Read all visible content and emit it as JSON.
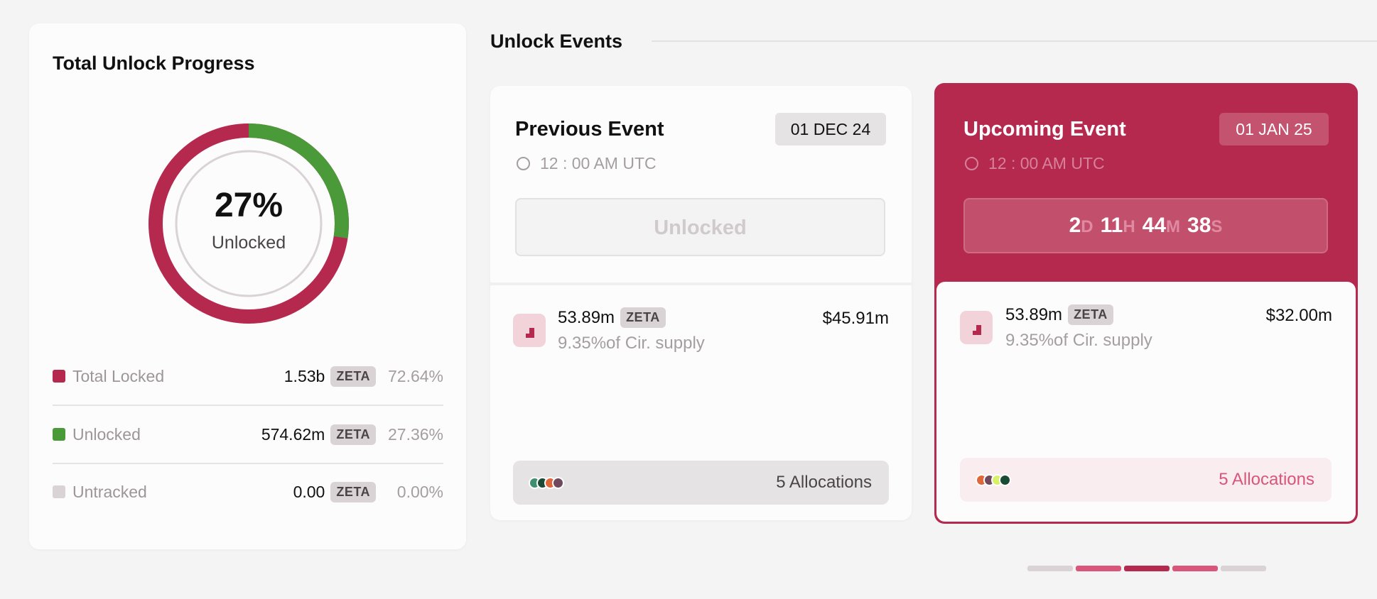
{
  "progress": {
    "title": "Total Unlock Progress",
    "percent_label": "27%",
    "center_label": "Unlocked",
    "unlocked_fraction": 0.2736,
    "colors": {
      "locked": "#b5294f",
      "unlocked": "#4a9a3a",
      "untracked": "#d9d3d5"
    },
    "legend": [
      {
        "label": "Total Locked",
        "amount": "1.53b",
        "token": "ZETA",
        "percent": "72.64%",
        "color": "#b5294f"
      },
      {
        "label": "Unlocked",
        "amount": "574.62m",
        "token": "ZETA",
        "percent": "27.36%",
        "color": "#4a9a3a"
      },
      {
        "label": "Untracked",
        "amount": "0.00",
        "token": "ZETA",
        "percent": "0.00%",
        "color": "#d9d3d5"
      }
    ]
  },
  "events": {
    "title": "Unlock Events",
    "previous": {
      "title": "Previous Event",
      "date": "01 DEC 24",
      "time": "12 : 00 AM UTC",
      "status_button": "Unlocked",
      "amount": "53.89m",
      "token": "ZETA",
      "supply": "9.35%of Cir. supply",
      "value": "$45.91m",
      "allocations": "5 Allocations",
      "allocation_colors": [
        "#3e9071",
        "#1b4a35",
        "#e0673a",
        "#704a5c"
      ]
    },
    "upcoming": {
      "title": "Upcoming Event",
      "date": "01 JAN 25",
      "time": "12 : 00 AM UTC",
      "countdown": [
        {
          "value": "2",
          "unit": "D"
        },
        {
          "value": "11",
          "unit": "H"
        },
        {
          "value": "44",
          "unit": "M"
        },
        {
          "value": "38",
          "unit": "S"
        }
      ],
      "amount": "53.89m",
      "token": "ZETA",
      "supply": "9.35%of Cir. supply",
      "value": "$32.00m",
      "allocations": "5 Allocations",
      "allocation_colors": [
        "#e0673a",
        "#704a5c",
        "#d8f06a",
        "#1b4a35"
      ]
    },
    "pagination": {
      "count": 5,
      "active_index": 2
    }
  }
}
